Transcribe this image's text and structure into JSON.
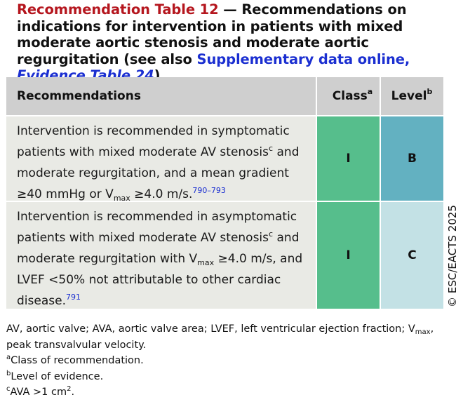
{
  "title": {
    "number": "Recommendation Table 12",
    "text": " — Recommendations on indications for intervention in patients with mixed moderate aortic stenosis and moderate aortic regurgitation (see also ",
    "link_main": "Supplementary data online, ",
    "link_italic": "Evidence Table 24",
    "close": ")"
  },
  "header": {
    "recommendations": "Recommendations",
    "class": "Class",
    "class_sup": "a",
    "level": "Level",
    "level_sup": "b"
  },
  "rows": [
    {
      "p1": "Intervention is recommended in symptomatic patients with mixed moderate AV stenosis",
      "sup1": "c",
      "p2": " and moderate regurgitation, and a mean gradient ≥40 mmHg or V",
      "sub": "max",
      "p3": " ≥4.0 m/s.",
      "ref": "790–793",
      "class": "I",
      "level": "B"
    },
    {
      "p1": "Intervention is recommended in asymptomatic patients with mixed moderate AV stenosis",
      "sup1": "c",
      "p2": " and moderate regurgitation with V",
      "sub": "max",
      "p3": " ≥4.0 m/s, and LVEF <50% not attributable to other cardiac disease.",
      "ref": "791",
      "class": "I",
      "level": "C"
    }
  ],
  "copyright": "© ESC/EACTS 2025",
  "notes": {
    "abbr_a": "AV, aortic valve; AVA, aortic valve area; LVEF, left ventricular ejection fraction; V",
    "abbr_sub": "max",
    "abbr_b": ", peak transvalvular velocity.",
    "fa_mark": "a",
    "fa_text": "Class of recommendation.",
    "fb_mark": "b",
    "fb_text": "Level of evidence.",
    "fc_mark": "c",
    "fc_text": "AVA >1 cm",
    "fc_sup": "2",
    "fc_end": "."
  }
}
